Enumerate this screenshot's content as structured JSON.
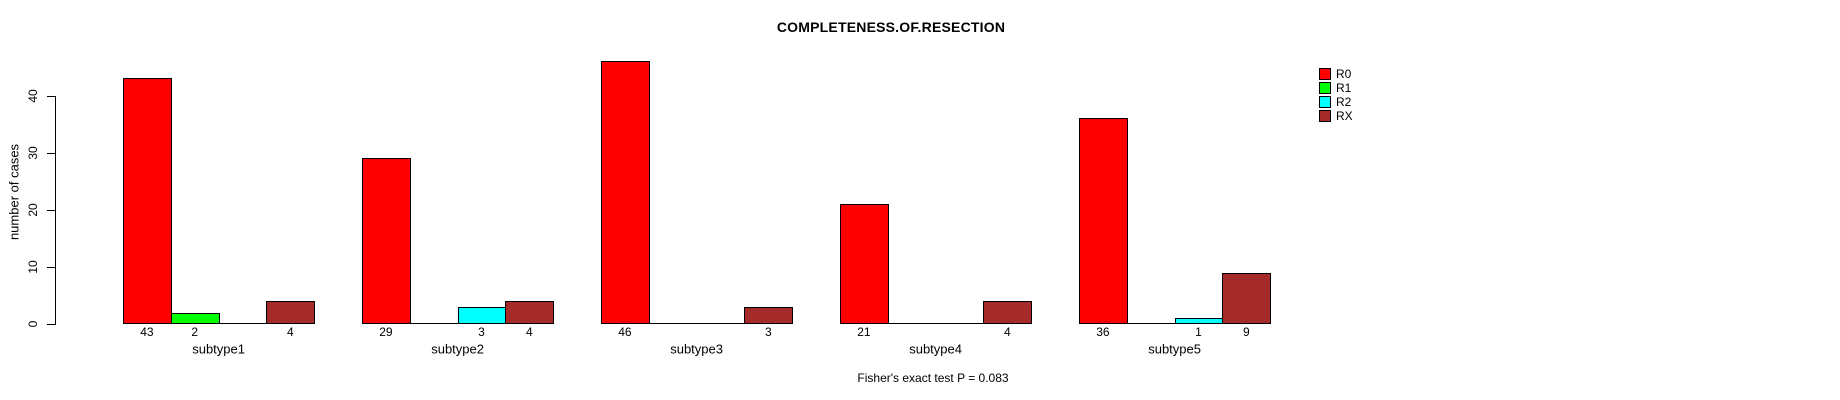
{
  "title": "COMPLETENESS.OF.RESECTION",
  "footer": "Fisher's exact test P = 0.083",
  "chart_data": {
    "type": "bar",
    "title": "COMPLETENESS.OF.RESECTION",
    "xlabel": "",
    "ylabel": "number of cases",
    "annotation": "Fisher's exact test P = 0.083",
    "categories": [
      "subtype1",
      "subtype2",
      "subtype3",
      "subtype4",
      "subtype5"
    ],
    "series": [
      {
        "name": "R0",
        "color": "#FF0000",
        "values": [
          43,
          29,
          46,
          21,
          36
        ]
      },
      {
        "name": "R1",
        "color": "#00FF00",
        "values": [
          2,
          0,
          0,
          0,
          0
        ]
      },
      {
        "name": "R2",
        "color": "#00FFFF",
        "values": [
          0,
          3,
          0,
          0,
          1
        ]
      },
      {
        "name": "RX",
        "color": "#A52A2A",
        "values": [
          4,
          4,
          3,
          4,
          9
        ]
      }
    ],
    "yticks": [
      0,
      10,
      20,
      30,
      40
    ],
    "ylim": [
      0,
      46
    ],
    "grid": false,
    "legend_position": "top-right",
    "bar_style": "grouped, zero-value bars drawn as flat baseline segments, counts labeled under non-zero bars"
  }
}
